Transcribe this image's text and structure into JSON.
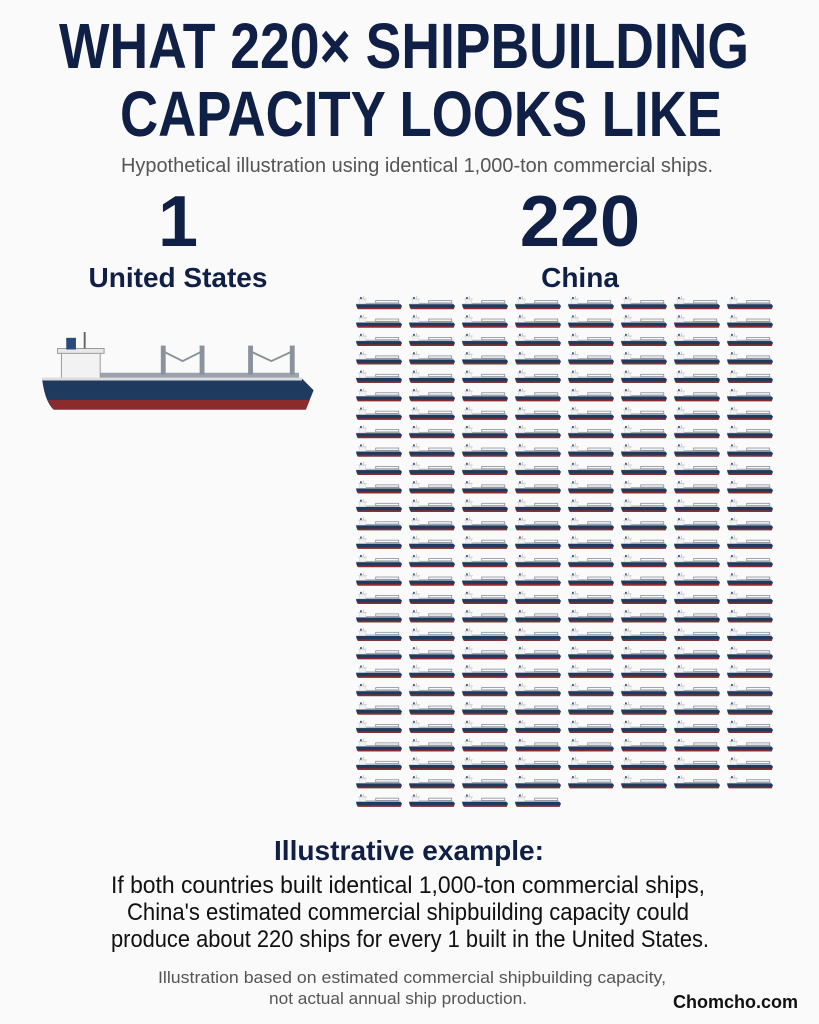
{
  "title_lines": [
    "WHAT 220× SHIPBUILDING",
    "CAPACITY LOOKS LIKE"
  ],
  "subtitle": "Hypothetical illustration using identical 1,000-ton commercial ships.",
  "chart_data": {
    "type": "pictogram",
    "categories": [
      "United States",
      "China"
    ],
    "values": [
      1,
      220
    ],
    "color": "#1f3a5f"
  },
  "note": {
    "heading": "Illustrative example:",
    "lines": [
      "If both countries built identical 1,000-ton commercial ships,",
      "China's estimated commercial shipbuilding capacity could",
      "produce about 220 ships for every 1 built in the United States."
    ]
  },
  "footnote_lines": [
    "Illustration based on estimated commercial shipbuilding capacity,",
    "not actual annual ship production."
  ],
  "credit": "Chomcho.com"
}
